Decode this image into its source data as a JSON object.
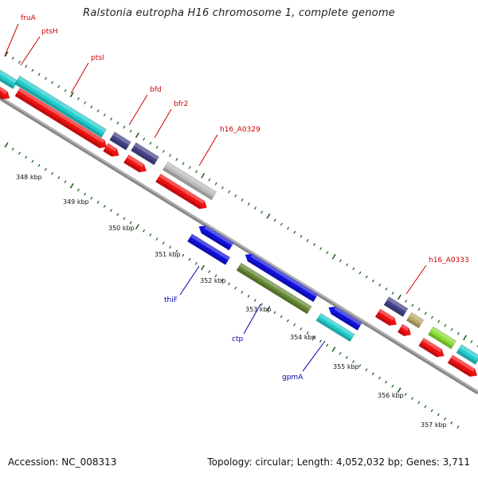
{
  "map": {
    "title": "Ralstonia eutropha H16 chromosome 1, complete genome",
    "accession_text": "Accession: NC_008313",
    "summary_text": "Topology: circular; Length: 4,052,032 bp; Genes: 3,711"
  },
  "scale": {
    "unit": "kbp",
    "tick_labels": [
      "348 kbp",
      "349 kbp",
      "350 kbp",
      "351 kbp",
      "352 kbp",
      "353 kbp",
      "354 kbp",
      "355 kbp",
      "356 kbp",
      "357 kbp"
    ]
  },
  "gene_labels": {
    "forward": [
      "fruA",
      "ptsH",
      "ptsI",
      "bfd",
      "bfr2",
      "h16_A0329",
      "h16_A0333"
    ],
    "reverse": [
      "thiF",
      "ctp",
      "gpmA"
    ]
  },
  "colors": {
    "backbone": "#8a8a8a",
    "forward_label": "#cc0000",
    "reverse_label": "#0000aa",
    "cds_red": "#ee1111",
    "cyan": "#22cccc",
    "navy": "#444488",
    "gray": "#bbbbbb",
    "blue": "#1111dd",
    "olive": "#668833",
    "khaki": "#bbaa66",
    "lime": "#88dd33",
    "tick_green": "#226622"
  }
}
